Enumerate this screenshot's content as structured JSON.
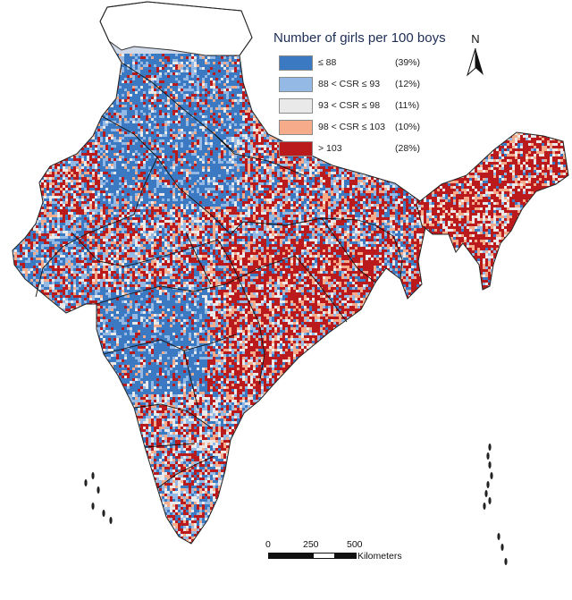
{
  "legend": {
    "title": "Number of girls per 100 boys",
    "classes": [
      {
        "label": "≤ 88",
        "percent": "(39%)",
        "color": "#3c79c3"
      },
      {
        "label": "88 < CSR ≤ 93",
        "percent": "(12%)",
        "color": "#94b9e4"
      },
      {
        "label": "93 < CSR ≤ 98",
        "percent": "(11%)",
        "color": "#e9e9e9"
      },
      {
        "label": "98 < CSR ≤ 103",
        "percent": "(10%)",
        "color": "#f6ab8a"
      },
      {
        "label": "> 103",
        "percent": "(28%)",
        "color": "#bb1a1c"
      }
    ]
  },
  "north_arrow": {
    "label": "N"
  },
  "scale_bar": {
    "ticks": [
      "0",
      "250",
      "500"
    ],
    "unit": "Kilometers"
  },
  "colors": {
    "border": "#111111",
    "outline": "#333333",
    "background": "#ffffff"
  }
}
